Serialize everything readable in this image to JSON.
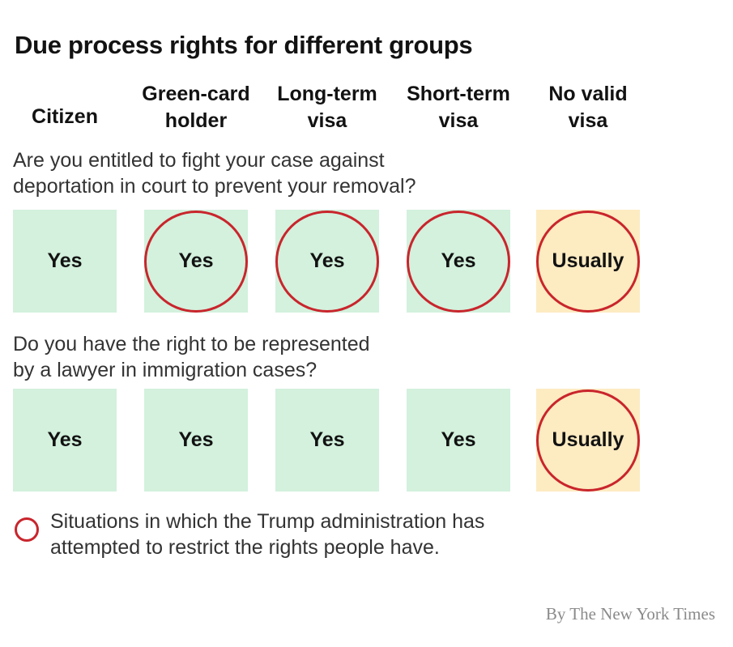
{
  "chart_data": {
    "type": "table",
    "title": "Due process rights for different groups",
    "columns": [
      "Citizen",
      "Green-card\nholder",
      "Long-term\nvisa",
      "Short-term\nvisa",
      "No valid\nvisa"
    ],
    "rows": [
      {
        "question": "Are you entitled to fight your case against\ndeportation in court to prevent your removal?",
        "answers": [
          "Yes",
          "Yes",
          "Yes",
          "Yes",
          "Usually"
        ],
        "restricted": [
          false,
          true,
          true,
          true,
          true
        ]
      },
      {
        "question": "Do you have the right to be represented\nby a lawyer in immigration cases?",
        "answers": [
          "Yes",
          "Yes",
          "Yes",
          "Yes",
          "Usually"
        ],
        "restricted": [
          false,
          false,
          false,
          false,
          true
        ]
      }
    ],
    "legend": "Situations in which the Trump administration has\nattempted to restrict the rights people have.",
    "credit": "By The New York Times",
    "colors": {
      "yes": "#d3f1dd",
      "usually": "#fdebc2",
      "ring": "#c9252c"
    }
  }
}
